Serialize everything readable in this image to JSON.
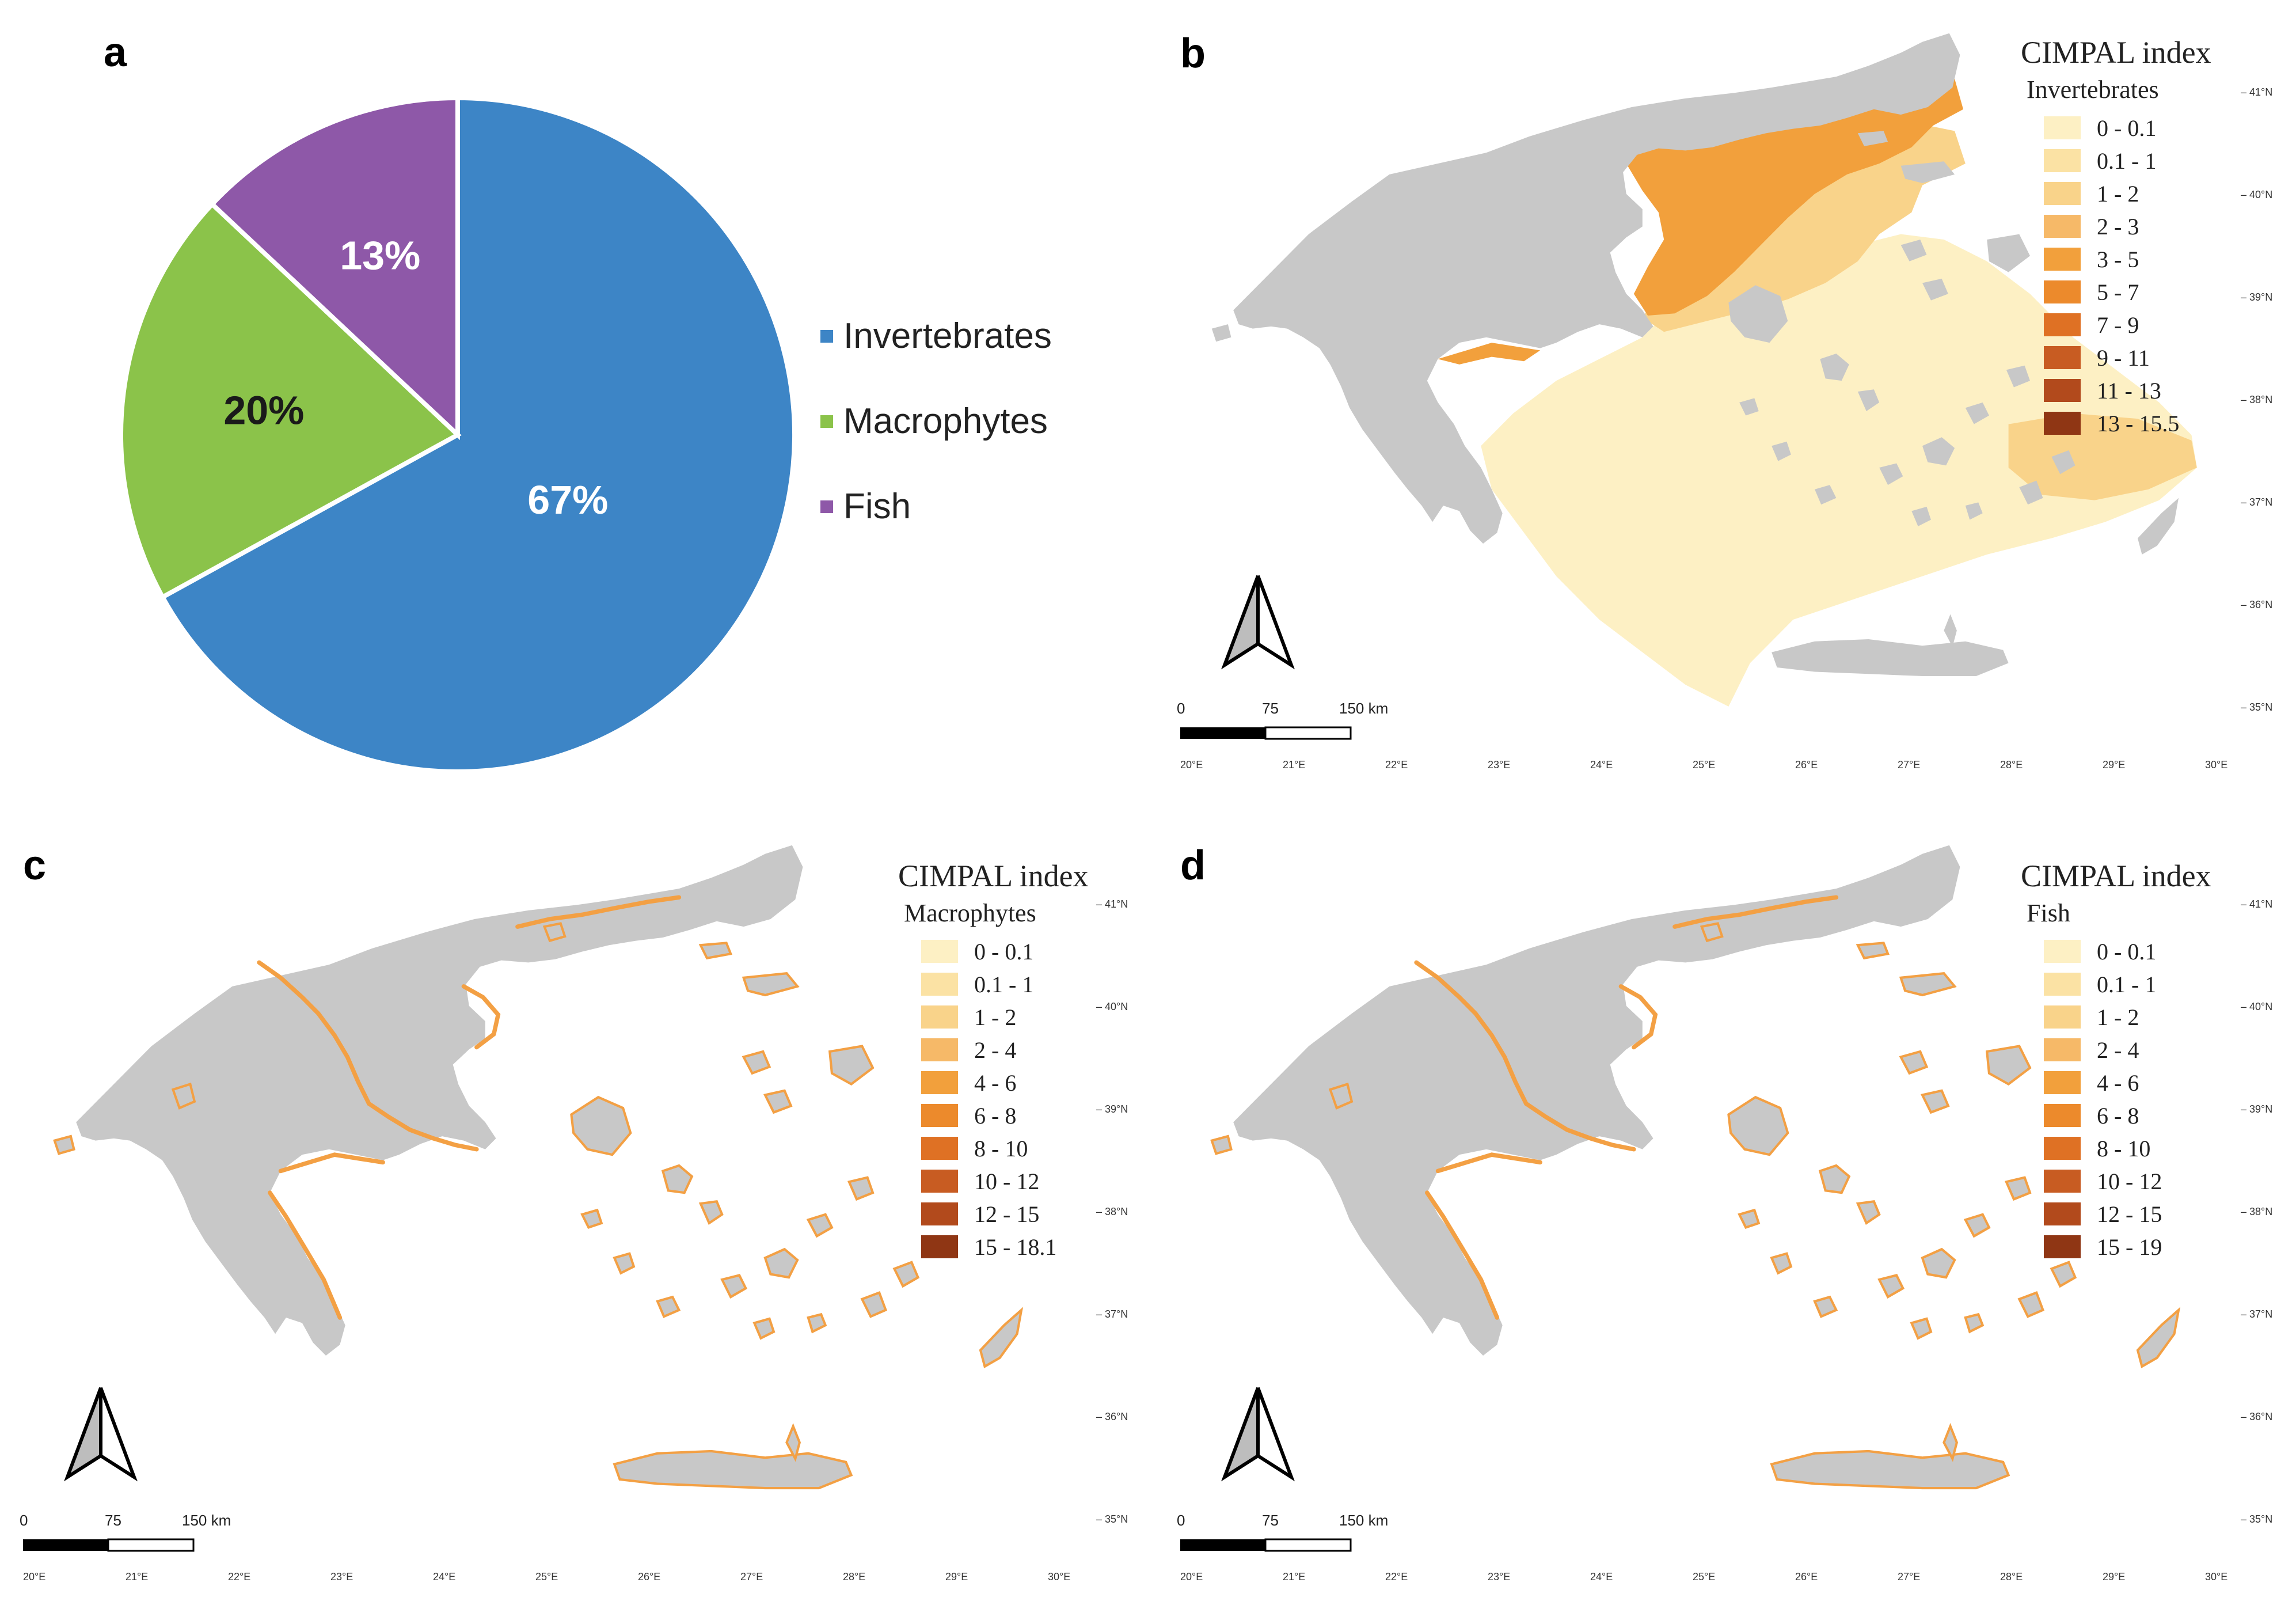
{
  "chart_data": [
    {
      "panel": "a",
      "type": "pie",
      "categories": [
        "Invertebrates",
        "Macrophytes",
        "Fish"
      ],
      "values": [
        67,
        20,
        13
      ],
      "labels": [
        "67%",
        "20%",
        "13%"
      ],
      "colors": [
        "#3d85c6",
        "#8bc34a",
        "#8e58a8"
      ],
      "label_colors": [
        "#ffffff",
        "#1a1a1a",
        "#ffffff"
      ],
      "legend": "right"
    },
    {
      "panel": "b",
      "type": "map",
      "legend_title": "CIMPAL index",
      "legend_subtitle": "Invertebrates",
      "classes": [
        "0 - 0.1",
        "0.1 - 1",
        "1 - 2",
        "2 - 3",
        "3 - 5",
        "5 - 7",
        "7 - 9",
        "9 - 11",
        "11 - 13",
        "13 - 15.5"
      ],
      "lon_ticks": [
        "20°E",
        "21°E",
        "22°E",
        "23°E",
        "24°E",
        "25°E",
        "26°E",
        "27°E",
        "28°E",
        "29°E",
        "30°E"
      ],
      "lat_ticks": [
        "41°N",
        "40°N",
        "39°N",
        "38°N",
        "37°N",
        "36°N",
        "35°N"
      ],
      "scale_bar": [
        "0",
        "75",
        "150 km"
      ]
    },
    {
      "panel": "c",
      "type": "map",
      "legend_title": "CIMPAL index",
      "legend_subtitle": "Macrophytes",
      "classes": [
        "0 - 0.1",
        "0.1 - 1",
        "1 - 2",
        "2 - 4",
        "4 - 6",
        "6 - 8",
        "8 - 10",
        "10 - 12",
        "12 - 15",
        "15 - 18.1"
      ],
      "lon_ticks": [
        "20°E",
        "21°E",
        "22°E",
        "23°E",
        "24°E",
        "25°E",
        "26°E",
        "27°E",
        "28°E",
        "29°E",
        "30°E"
      ],
      "lat_ticks": [
        "41°N",
        "40°N",
        "39°N",
        "38°N",
        "37°N",
        "36°N",
        "35°N"
      ],
      "scale_bar": [
        "0",
        "75",
        "150 km"
      ]
    },
    {
      "panel": "d",
      "type": "map",
      "legend_title": "CIMPAL index",
      "legend_subtitle": "Fish",
      "classes": [
        "0 - 0.1",
        "0.1 - 1",
        "1 - 2",
        "2 - 4",
        "4 - 6",
        "6 - 8",
        "8 - 10",
        "10 - 12",
        "12 - 15",
        "15 - 19"
      ],
      "lon_ticks": [
        "20°E",
        "21°E",
        "22°E",
        "23°E",
        "24°E",
        "25°E",
        "26°E",
        "27°E",
        "28°E",
        "29°E",
        "30°E"
      ],
      "lat_ticks": [
        "41°N",
        "40°N",
        "39°N",
        "38°N",
        "37°N",
        "36°N",
        "35°N"
      ],
      "scale_bar": [
        "0",
        "75",
        "150 km"
      ]
    }
  ],
  "panel_letters": {
    "a": "a",
    "b": "b",
    "c": "c",
    "d": "d"
  },
  "legend_colors": [
    "#fdf0c4",
    "#fbe2a4",
    "#f9d38a",
    "#f6b968",
    "#f2a03c",
    "#ec8a2c",
    "#df7124",
    "#c85c22",
    "#b24a1c",
    "#8f3614"
  ],
  "land_color": "#c8c8c8",
  "map_overlay_color": "#f3a044",
  "map_sea_color": "#fdf0c4"
}
